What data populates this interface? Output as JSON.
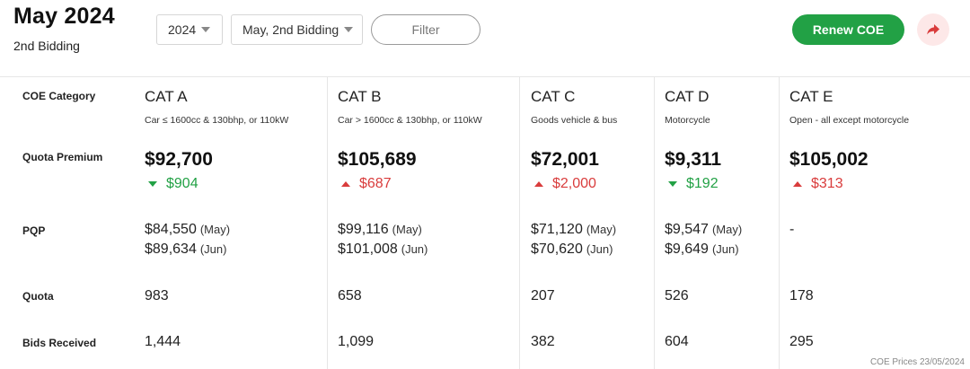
{
  "header": {
    "title": "May 2024",
    "subtitle": "2nd Bidding",
    "year_select": "2024",
    "round_select": "May, 2nd Bidding",
    "filter_label": "Filter",
    "renew_label": "Renew COE",
    "share_icon": "share-arrow-icon"
  },
  "row_labels": {
    "category": "COE Category",
    "premium": "Quota Premium",
    "pqp": "PQP",
    "quota": "Quota",
    "bids": "Bids Received"
  },
  "categories": [
    {
      "name": "CAT A",
      "desc": "Car ≤ 1600cc & 130bhp, or 110kW",
      "premium": "$92,700",
      "change": "$904",
      "direction": "down",
      "pqp1_value": "$84,550",
      "pqp1_month": "(May)",
      "pqp2_value": "$89,634",
      "pqp2_month": "(Jun)",
      "quota": "983",
      "bids": "1,444"
    },
    {
      "name": "CAT B",
      "desc": "Car > 1600cc & 130bhp, or 110kW",
      "premium": "$105,689",
      "change": "$687",
      "direction": "up",
      "pqp1_value": "$99,116",
      "pqp1_month": "(May)",
      "pqp2_value": "$101,008",
      "pqp2_month": "(Jun)",
      "quota": "658",
      "bids": "1,099"
    },
    {
      "name": "CAT C",
      "desc": "Goods vehicle & bus",
      "premium": "$72,001",
      "change": "$2,000",
      "direction": "up",
      "pqp1_value": "$71,120",
      "pqp1_month": "(May)",
      "pqp2_value": "$70,620",
      "pqp2_month": "(Jun)",
      "quota": "207",
      "bids": "382"
    },
    {
      "name": "CAT D",
      "desc": "Motorcycle",
      "premium": "$9,311",
      "change": "$192",
      "direction": "down",
      "pqp1_value": "$9,547",
      "pqp1_month": "(May)",
      "pqp2_value": "$9,649",
      "pqp2_month": "(Jun)",
      "quota": "526",
      "bids": "604"
    },
    {
      "name": "CAT E",
      "desc": "Open - all except motorcycle",
      "premium": "$105,002",
      "change": "$313",
      "direction": "up",
      "pqp1_value": "-",
      "pqp1_month": "",
      "pqp2_value": "",
      "pqp2_month": "",
      "quota": "178",
      "bids": "295"
    }
  ],
  "footnote": "COE Prices 23/05/2024",
  "colors": {
    "accent_green": "#22a145",
    "change_red": "#d93c3c"
  }
}
